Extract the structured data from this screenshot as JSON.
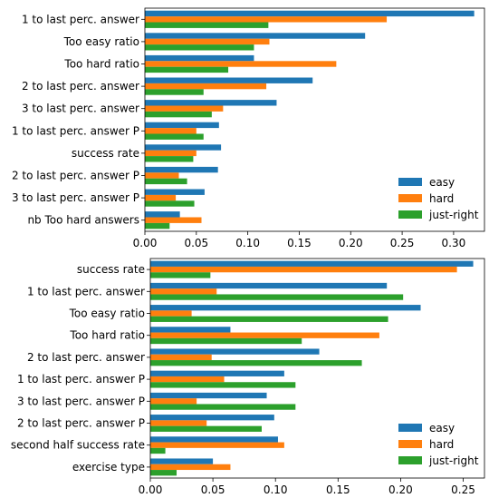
{
  "chart_data": [
    {
      "type": "bar",
      "orientation": "horizontal",
      "categories": [
        "1 to last perc. answer",
        "Too easy ratio",
        "Too hard ratio",
        "2 to last perc. answer",
        "3 to last perc. answer",
        "1 to last perc. answer P",
        "success rate",
        "2 to last perc. answer P",
        "3 to last perc. answer P",
        "nb Too hard answers"
      ],
      "series": [
        {
          "name": "easy",
          "color": "#1f77b4",
          "values": [
            0.32,
            0.214,
            0.106,
            0.163,
            0.128,
            0.072,
            0.074,
            0.071,
            0.058,
            0.034
          ]
        },
        {
          "name": "hard",
          "color": "#ff7f0e",
          "values": [
            0.235,
            0.121,
            0.186,
            0.118,
            0.076,
            0.05,
            0.05,
            0.033,
            0.03,
            0.055
          ]
        },
        {
          "name": "just-right",
          "color": "#2ca02c",
          "values": [
            0.12,
            0.106,
            0.081,
            0.057,
            0.065,
            0.057,
            0.047,
            0.041,
            0.048,
            0.024
          ]
        }
      ],
      "xticks": [
        "0.00",
        "0.05",
        "0.10",
        "0.15",
        "0.20",
        "0.25",
        "0.30"
      ],
      "xlim": [
        0,
        0.33
      ],
      "legend_position": "lower-right",
      "grid": false
    },
    {
      "type": "bar",
      "orientation": "horizontal",
      "categories": [
        "success rate",
        "1 to last perc. answer",
        "Too easy ratio",
        "Too hard ratio",
        "2 to last perc. answer",
        "1 to last perc. answer P",
        "3 to last perc. answer P",
        "2 to last perc. answer P",
        "second half success rate",
        "exercise type"
      ],
      "series": [
        {
          "name": "easy",
          "color": "#1f77b4",
          "values": [
            0.258,
            0.189,
            0.216,
            0.064,
            0.135,
            0.107,
            0.093,
            0.099,
            0.102,
            0.05
          ]
        },
        {
          "name": "hard",
          "color": "#ff7f0e",
          "values": [
            0.245,
            0.053,
            0.033,
            0.183,
            0.049,
            0.059,
            0.037,
            0.045,
            0.107,
            0.064
          ]
        },
        {
          "name": "just-right",
          "color": "#2ca02c",
          "values": [
            0.048,
            0.202,
            0.19,
            0.121,
            0.169,
            0.116,
            0.116,
            0.089,
            0.012,
            0.021
          ]
        }
      ],
      "xticks": [
        "0.00",
        "0.05",
        "0.10",
        "0.15",
        "0.20",
        "0.25"
      ],
      "xlim": [
        0,
        0.267
      ],
      "legend_position": "lower-right",
      "grid": false
    }
  ]
}
